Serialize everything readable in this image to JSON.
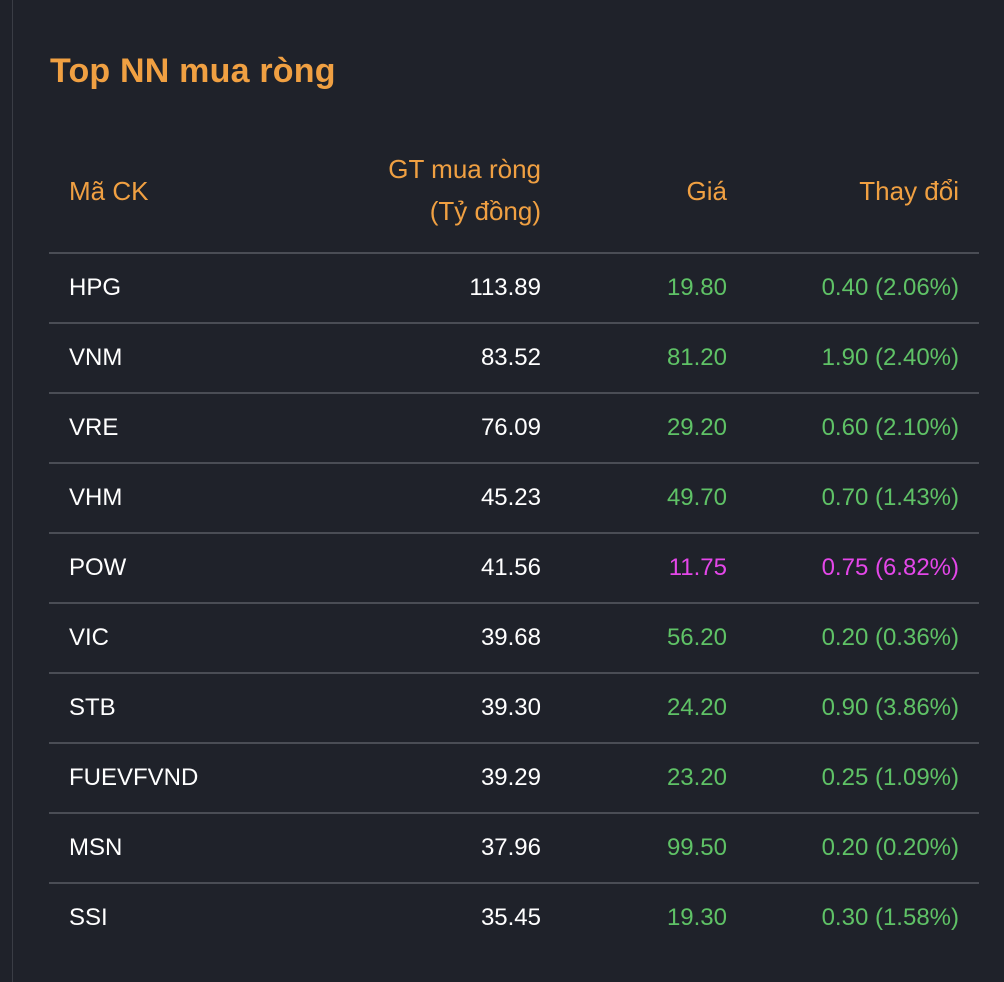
{
  "colors": {
    "background": "#1f222a",
    "accent": "#f0a042",
    "up": "#5fc266",
    "ceiling": "#e447e9",
    "divider": "#4a4d55",
    "text": "#ffffff"
  },
  "title": "Top NN mua ròng",
  "headers": {
    "code": "Mã CK",
    "value_line1": "GT mua ròng",
    "value_line2": "(Tỷ đồng)",
    "price": "Giá",
    "change": "Thay đổi"
  },
  "rows": [
    {
      "code": "HPG",
      "value": "113.89",
      "price": "19.80",
      "change": "0.40 (2.06%)",
      "status": "up"
    },
    {
      "code": "VNM",
      "value": "83.52",
      "price": "81.20",
      "change": "1.90 (2.40%)",
      "status": "up"
    },
    {
      "code": "VRE",
      "value": "76.09",
      "price": "29.20",
      "change": "0.60 (2.10%)",
      "status": "up"
    },
    {
      "code": "VHM",
      "value": "45.23",
      "price": "49.70",
      "change": "0.70 (1.43%)",
      "status": "up"
    },
    {
      "code": "POW",
      "value": "41.56",
      "price": "11.75",
      "change": "0.75 (6.82%)",
      "status": "ceiling"
    },
    {
      "code": "VIC",
      "value": "39.68",
      "price": "56.20",
      "change": "0.20 (0.36%)",
      "status": "up"
    },
    {
      "code": "STB",
      "value": "39.30",
      "price": "24.20",
      "change": "0.90 (3.86%)",
      "status": "up"
    },
    {
      "code": "FUEVFVND",
      "value": "39.29",
      "price": "23.20",
      "change": "0.25 (1.09%)",
      "status": "up"
    },
    {
      "code": "MSN",
      "value": "37.96",
      "price": "99.50",
      "change": "0.20 (0.20%)",
      "status": "up"
    },
    {
      "code": "SSI",
      "value": "35.45",
      "price": "19.30",
      "change": "0.30 (1.58%)",
      "status": "up"
    }
  ]
}
